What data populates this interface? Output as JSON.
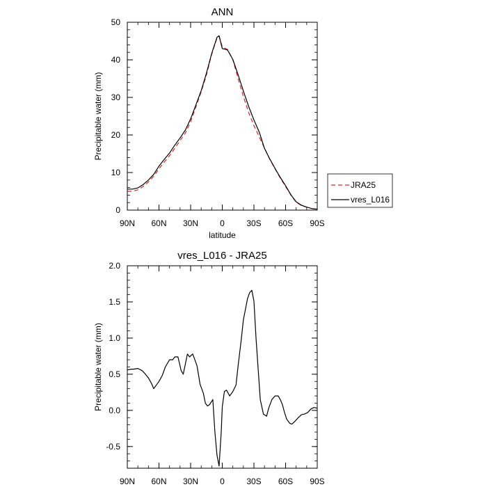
{
  "chart_data": [
    {
      "type": "line",
      "title": "ANN",
      "xlabel": "latitude",
      "ylabel": "Precipitable water (mm)",
      "xlim": [
        90,
        -90
      ],
      "ylim": [
        0,
        50
      ],
      "xticks": [
        90,
        60,
        30,
        0,
        -30,
        -60,
        -90
      ],
      "xtick_labels": [
        "90N",
        "60N",
        "30N",
        "0",
        "30S",
        "60S",
        "90S"
      ],
      "yticks": [
        0,
        10,
        20,
        30,
        40,
        50
      ],
      "ytick_labels": [
        "0",
        "10",
        "20",
        "30",
        "40",
        "50"
      ],
      "legend": "outside-right",
      "series": [
        {
          "name": "JRA25",
          "color": "#e02020",
          "dash": "dashed",
          "x": [
            90,
            85,
            80,
            75,
            70,
            65,
            60,
            55,
            50,
            45,
            40,
            35,
            30,
            25,
            20,
            15,
            10,
            5,
            3,
            0,
            -3,
            -5,
            -10,
            -15,
            -20,
            -25,
            -30,
            -35,
            -40,
            -45,
            -50,
            -55,
            -60,
            -65,
            -70,
            -75,
            -80,
            -85,
            -90
          ],
          "y": [
            5.0,
            5.0,
            5.4,
            6.3,
            7.5,
            9.0,
            11.0,
            12.8,
            14.5,
            16.5,
            18.5,
            20.5,
            23.5,
            27.5,
            31.5,
            36.0,
            41.5,
            45.8,
            46.3,
            43.5,
            43.0,
            42.8,
            40.0,
            35.0,
            30.3,
            26.0,
            22.5,
            19.5,
            16.5,
            13.5,
            11.0,
            8.5,
            6.3,
            4.0,
            2.1,
            1.2,
            0.8,
            0.4,
            0.2
          ]
        },
        {
          "name": "vres_L016",
          "color": "#000000",
          "dash": "solid",
          "x": [
            90,
            85,
            80,
            75,
            70,
            65,
            60,
            55,
            50,
            45,
            40,
            35,
            30,
            25,
            20,
            15,
            10,
            5,
            3,
            0,
            -3,
            -5,
            -10,
            -15,
            -20,
            -25,
            -30,
            -35,
            -40,
            -45,
            -50,
            -55,
            -60,
            -65,
            -70,
            -75,
            -80,
            -85,
            -90
          ],
          "y": [
            5.6,
            5.6,
            5.9,
            6.8,
            8.0,
            9.5,
            11.7,
            13.5,
            15.2,
            17.3,
            19.2,
            21.3,
            24.3,
            28.0,
            31.8,
            36.5,
            41.7,
            46.0,
            46.4,
            43.0,
            42.8,
            42.6,
            40.1,
            36.0,
            31.7,
            27.6,
            24.0,
            20.8,
            16.4,
            13.6,
            11.1,
            8.7,
            6.5,
            4.1,
            2.2,
            1.3,
            0.8,
            0.4,
            0.25
          ]
        }
      ]
    },
    {
      "type": "line",
      "title": "vres_L016 - JRA25",
      "xlabel": "latitude",
      "ylabel": "Precipitable water (mm)",
      "xlim": [
        90,
        -90
      ],
      "ylim": [
        -0.8,
        2.0
      ],
      "xticks": [
        90,
        60,
        30,
        0,
        -30,
        -60,
        -90
      ],
      "xtick_labels": [
        "90N",
        "60N",
        "30N",
        "0",
        "30S",
        "60S",
        "90S"
      ],
      "yticks": [
        -0.5,
        0.0,
        0.5,
        1.0,
        1.5,
        2.0
      ],
      "ytick_labels": [
        "-0.5",
        "0.0",
        "0.5",
        "1.0",
        "1.5",
        "2.0"
      ],
      "series": [
        {
          "name": "vres_L016 - JRA25",
          "color": "#000000",
          "dash": "solid",
          "x": [
            90,
            86,
            84,
            80,
            76,
            74,
            70,
            67,
            65,
            60,
            57,
            54,
            50,
            47,
            45,
            42,
            39,
            37,
            33,
            31,
            28,
            24,
            21,
            18,
            16,
            14,
            12,
            9,
            7,
            5,
            3,
            1,
            0,
            -2,
            -4,
            -7,
            -10,
            -13,
            -15,
            -18,
            -20,
            -24,
            -26,
            -28,
            -30,
            -32,
            -36,
            -39,
            -42,
            -44,
            -47,
            -50,
            -53,
            -55,
            -57,
            -59,
            -61,
            -64,
            -66,
            -69,
            -72,
            -75,
            -78,
            -81,
            -84,
            -87,
            -90
          ],
          "y": [
            0.56,
            0.57,
            0.57,
            0.58,
            0.55,
            0.52,
            0.45,
            0.37,
            0.3,
            0.4,
            0.48,
            0.6,
            0.7,
            0.7,
            0.74,
            0.74,
            0.55,
            0.5,
            0.78,
            0.74,
            0.78,
            0.62,
            0.36,
            0.24,
            0.1,
            0.06,
            0.08,
            0.15,
            -0.3,
            -0.62,
            -0.77,
            -0.3,
            0.05,
            0.26,
            0.28,
            0.2,
            0.26,
            0.35,
            0.62,
            0.98,
            1.25,
            1.55,
            1.63,
            1.66,
            1.51,
            1.0,
            0.15,
            -0.05,
            -0.08,
            0.03,
            0.15,
            0.2,
            0.2,
            0.15,
            0.08,
            -0.03,
            -0.12,
            -0.18,
            -0.19,
            -0.15,
            -0.1,
            -0.06,
            -0.05,
            -0.03,
            0.02,
            0.04,
            0.03
          ]
        }
      ]
    }
  ]
}
